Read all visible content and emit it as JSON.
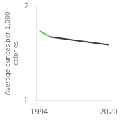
{
  "chart_data": {
    "type": "line",
    "ylabel": "Average ounces per 1,000\ncalories",
    "series": [
      {
        "color": "#6abf69",
        "x": [
          1994,
          1998
        ],
        "values": [
          1.48,
          1.35
        ]
      },
      {
        "color": "#3a3a3a",
        "x": [
          1998,
          2020
        ],
        "values": [
          1.35,
          1.18
        ]
      }
    ],
    "xlim": [
      1993,
      2021
    ],
    "xticks": [
      1994,
      2020
    ],
    "ylim": [
      0,
      2.0
    ],
    "yticks": [
      0,
      2
    ],
    "grid": false
  }
}
